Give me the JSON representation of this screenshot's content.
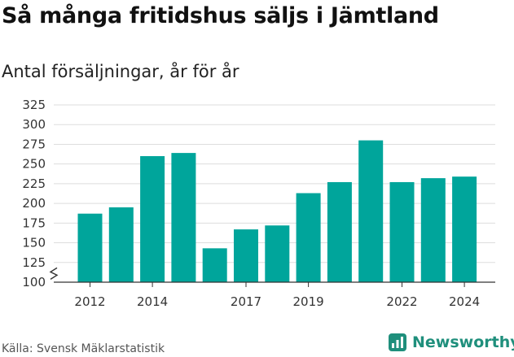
{
  "title": "Så många fritidshus säljs i Jämtland",
  "subtitle": "Antal försäljningar, år för år",
  "source": "Källa: Svensk Mäklarstatistik",
  "brand": {
    "name": "Newsworthy",
    "icon": "newsworthy-logo-icon",
    "color": "#1f8f7c"
  },
  "colors": {
    "bar": "#00a59b",
    "grid": "#dddddd"
  },
  "chart_data": {
    "type": "bar",
    "categories": [
      "2012",
      "2013",
      "2014",
      "2015",
      "2016",
      "2017",
      "2018",
      "2019",
      "2020",
      "2021",
      "2022",
      "2023",
      "2024"
    ],
    "x_tick_labels": [
      "2012",
      "2014",
      "2017",
      "2019",
      "2022",
      "2024"
    ],
    "values": [
      187,
      195,
      260,
      264,
      143,
      167,
      172,
      213,
      227,
      280,
      227,
      232,
      234
    ],
    "ylim": [
      100,
      325
    ],
    "yticks": [
      100,
      125,
      150,
      175,
      200,
      225,
      250,
      275,
      300,
      325
    ],
    "y_axis_break": true,
    "grid": true
  }
}
